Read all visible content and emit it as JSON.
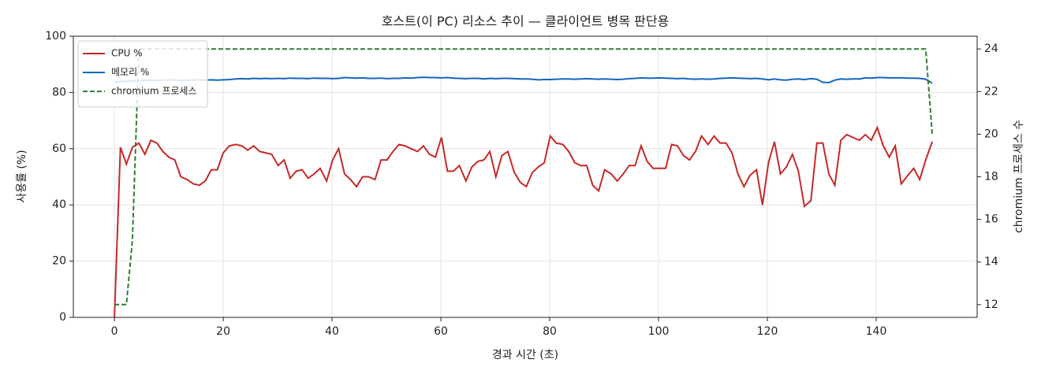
{
  "chart_data": {
    "type": "line",
    "title": "호스트(이 PC) 리소스 추이 — 클라이언트 병목 판단용",
    "xlabel": "경과 시간 (초)",
    "ylabel": "사용률 (%)",
    "y2label": "chromium 프로세스 수",
    "x": [
      0,
      1.1,
      2.2,
      3.3,
      4.5,
      5.6,
      6.7,
      7.8,
      8.9,
      10,
      11.1,
      12.2,
      13.4,
      14.5,
      15.6,
      16.7,
      17.8,
      18.9,
      20,
      21.1,
      22.3,
      23.4,
      24.5,
      25.6,
      26.7,
      27.8,
      28.9,
      30.1,
      31.2,
      32.3,
      33.4,
      34.5,
      35.6,
      36.7,
      37.8,
      39,
      40.1,
      41.2,
      42.3,
      43.4,
      44.5,
      45.6,
      46.7,
      47.9,
      49,
      50.1,
      51.2,
      52.3,
      53.4,
      54.5,
      55.7,
      56.8,
      57.9,
      59,
      60.1,
      61.2,
      62.3,
      63.4,
      64.6,
      65.7,
      66.8,
      67.9,
      69,
      70.1,
      71.2,
      72.3,
      73.5,
      74.6,
      75.7,
      76.8,
      77.9,
      79,
      80.1,
      81.2,
      82.4,
      83.5,
      84.6,
      85.7,
      86.8,
      87.9,
      89,
      90.1,
      91.3,
      92.4,
      93.5,
      94.6,
      95.7,
      96.8,
      97.9,
      99,
      100.2,
      101.3,
      102.4,
      103.5,
      104.6,
      105.7,
      106.8,
      107.9,
      109.1,
      110.2,
      111.3,
      112.4,
      113.5,
      114.6,
      115.7,
      116.8,
      118,
      119.1,
      120.2,
      121.3,
      122.4,
      123.5,
      124.6,
      125.7,
      126.8,
      128,
      129.1,
      130.2,
      131.3,
      132.4,
      133.5,
      134.6,
      135.7,
      136.9,
      138,
      139.1,
      140.2,
      141.3,
      142.4,
      143.5,
      144.6,
      145.8,
      146.9,
      148,
      149.1,
      150.3
    ],
    "series": [
      {
        "name": "CPU %",
        "color": "#c62828",
        "values": [
          0,
          60.5,
          54.5,
          60.5,
          62,
          58,
          63,
          62,
          59,
          57,
          56,
          50,
          49,
          47.5,
          47,
          48.5,
          52.5,
          52.5,
          58.5,
          61,
          61.5,
          61,
          59.5,
          61,
          59,
          58.5,
          58,
          54,
          56,
          49.5,
          52,
          52.5,
          49.5,
          51,
          53,
          48.5,
          56,
          60,
          51,
          49,
          46.5,
          50,
          50,
          49,
          56,
          56,
          59,
          61.5,
          61,
          60,
          59,
          61,
          58,
          57,
          64,
          52,
          52,
          54,
          48.5,
          53.5,
          55.5,
          56,
          59,
          50,
          57.5,
          59,
          51.5,
          48,
          46.5,
          51.5,
          53.5,
          55,
          64.5,
          62,
          61.5,
          59,
          55,
          54,
          54,
          47,
          45,
          52.5,
          51,
          48.5,
          51,
          54,
          54,
          61,
          55.5,
          53,
          53,
          53,
          61.5,
          61,
          57.5,
          56,
          59,
          64.5,
          61.5,
          64.5,
          62,
          62,
          58.5,
          51,
          46.5,
          50.5,
          52.5,
          40,
          55,
          62.5,
          51,
          53.5,
          58,
          52,
          39.5,
          41.5,
          62,
          62,
          51,
          47,
          63,
          65,
          64,
          63,
          65,
          63,
          67.5,
          61,
          57,
          61,
          47.5,
          50.5,
          53,
          49,
          56,
          62.5
        ]
      },
      {
        "name": "메모리 %",
        "color": "#1565c0",
        "values": [
          83.8,
          83.9,
          84,
          84.1,
          84.2,
          84.3,
          84.4,
          84.3,
          84.4,
          84.5,
          84.4,
          84.3,
          84.4,
          84.4,
          84.5,
          84.4,
          84.5,
          84.4,
          84.5,
          84.6,
          84.8,
          84.9,
          84.8,
          85,
          84.9,
          85,
          84.9,
          85,
          84.9,
          85.1,
          85,
          85,
          84.9,
          85.1,
          85,
          85,
          84.9,
          85,
          85.3,
          85.2,
          85.1,
          85.2,
          85,
          85,
          85.1,
          84.9,
          85,
          85,
          85.2,
          85.1,
          85.3,
          85.4,
          85.3,
          85.3,
          85.2,
          85.3,
          85.1,
          85,
          84.9,
          85,
          85,
          84.8,
          85,
          84.9,
          85,
          85,
          84.9,
          84.8,
          84.8,
          84.7,
          84.5,
          84.6,
          84.6,
          84.7,
          84.8,
          84.8,
          84.7,
          84.8,
          84.9,
          84.8,
          84.7,
          84.8,
          84.7,
          84.6,
          84.7,
          84.9,
          85,
          85.2,
          85.1,
          85.1,
          85.2,
          85.1,
          85,
          84.9,
          85,
          84.8,
          84.7,
          84.8,
          84.7,
          84.8,
          85,
          85.1,
          85.2,
          85.1,
          85,
          84.9,
          85,
          84.8,
          84.5,
          84.8,
          84.5,
          84.4,
          84.7,
          84.8,
          84.6,
          84.9,
          84.7,
          83.6,
          83.5,
          84.4,
          84.8,
          84.7,
          84.8,
          84.8,
          85.2,
          85.1,
          85.3,
          85.3,
          85.2,
          85.2,
          85.2,
          85.1,
          85.1,
          85,
          84.7,
          83.3
        ]
      },
      {
        "name": "chromium 프로세스",
        "color": "#2e7d32",
        "dashed": true,
        "axis": "y2",
        "values": [
          12,
          12,
          12,
          15,
          24,
          24,
          24,
          24,
          24,
          24,
          24,
          24,
          24,
          24,
          24,
          24,
          24,
          24,
          24,
          24,
          24,
          24,
          24,
          24,
          24,
          24,
          24,
          24,
          24,
          24,
          24,
          24,
          24,
          24,
          24,
          24,
          24,
          24,
          24,
          24,
          24,
          24,
          24,
          24,
          24,
          24,
          24,
          24,
          24,
          24,
          24,
          24,
          24,
          24,
          24,
          24,
          24,
          24,
          24,
          24,
          24,
          24,
          24,
          24,
          24,
          24,
          24,
          24,
          24,
          24,
          24,
          24,
          24,
          24,
          24,
          24,
          24,
          24,
          24,
          24,
          24,
          24,
          24,
          24,
          24,
          24,
          24,
          24,
          24,
          24,
          24,
          24,
          24,
          24,
          24,
          24,
          24,
          24,
          24,
          24,
          24,
          24,
          24,
          24,
          24,
          24,
          24,
          24,
          24,
          24,
          24,
          24,
          24,
          24,
          24,
          24,
          24,
          24,
          24,
          24,
          24,
          24,
          24,
          24,
          24,
          24,
          24,
          24,
          24,
          24,
          24,
          24,
          24,
          24,
          24,
          20
        ]
      }
    ],
    "xlim": [
      -7.55,
      158.55
    ],
    "xticks": [
      0,
      20,
      40,
      60,
      80,
      100,
      120,
      140
    ],
    "ylim": [
      0,
      100
    ],
    "yticks": [
      0,
      20,
      40,
      60,
      80,
      100
    ],
    "y2lim": [
      11.4,
      24.6
    ],
    "y2ticks": [
      12,
      14,
      16,
      18,
      20,
      22,
      24
    ],
    "grid": true,
    "legend": "upper left"
  }
}
